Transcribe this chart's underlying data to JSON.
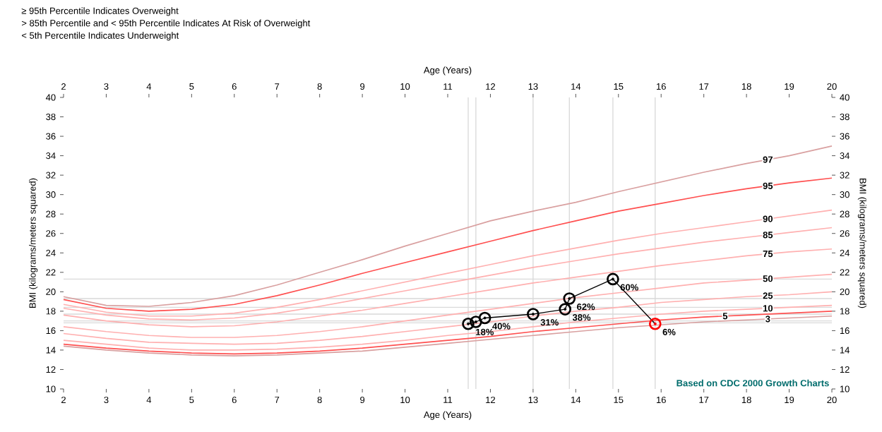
{
  "chart_data": {
    "type": "line",
    "annotations": [
      "≥ 95th Percentile Indicates Overweight",
      "> 85th Percentile and < 95th Percentile Indicates At Risk of Overweight",
      "< 5th Percentile Indicates Underweight",
      "Based on CDC 2000 Growth Charts",
      {
        "text": "18%",
        "x": 11.48,
        "y": 16.7
      },
      {
        "text": "40%",
        "x": 11.87,
        "y": 17.3
      },
      {
        "text": "31%",
        "x": 13.0,
        "y": 17.7
      },
      {
        "text": "38%",
        "x": 13.75,
        "y": 18.2
      },
      {
        "text": "62%",
        "x": 13.85,
        "y": 19.3
      },
      {
        "text": "60%",
        "x": 14.87,
        "y": 21.3
      },
      {
        "text": "6%",
        "x": 15.86,
        "y": 16.7
      }
    ],
    "xlabel": "Age (Years)",
    "x2label": "Age (Years)",
    "ylabel": "BMI (kilograms/meters squared)",
    "y2label": "BMI (kilograms/meters squared)",
    "xlim": [
      2,
      20
    ],
    "xticks": [
      2,
      3,
      4,
      5,
      6,
      7,
      8,
      9,
      10,
      11,
      12,
      13,
      14,
      15,
      16,
      17,
      18,
      19,
      20
    ],
    "x2lim": [
      2,
      20
    ],
    "x2ticks": [
      2,
      3,
      4,
      5,
      6,
      7,
      8,
      9,
      10,
      11,
      12,
      13,
      14,
      15,
      16,
      17,
      18,
      19,
      20
    ],
    "ylim": [
      10,
      40
    ],
    "yticks": [
      10,
      12,
      14,
      16,
      18,
      20,
      22,
      24,
      26,
      28,
      30,
      32,
      34,
      36,
      38,
      40
    ],
    "y2lim": [
      10,
      40
    ],
    "y2ticks": [
      10,
      12,
      14,
      16,
      18,
      20,
      22,
      24,
      26,
      28,
      30,
      32,
      34,
      36,
      38,
      40
    ],
    "legend": false,
    "x": [
      2,
      3,
      4,
      5,
      6,
      7,
      8,
      9,
      10,
      11,
      12,
      13,
      14,
      15,
      16,
      17,
      18,
      19,
      20
    ],
    "series": [
      {
        "name": "97",
        "color": "#d9a0a0",
        "values": [
          19.5,
          18.6,
          18.5,
          18.9,
          19.6,
          20.7,
          22.0,
          23.3,
          24.7,
          26.0,
          27.3,
          28.3,
          29.2,
          30.3,
          31.3,
          32.3,
          33.2,
          34.0,
          35.0
        ]
      },
      {
        "name": "95",
        "color": "#ff5050",
        "values": [
          19.2,
          18.3,
          18.0,
          18.2,
          18.7,
          19.6,
          20.7,
          21.9,
          23.0,
          24.1,
          25.2,
          26.3,
          27.3,
          28.3,
          29.1,
          29.9,
          30.6,
          31.2,
          31.7
        ]
      },
      {
        "name": "90",
        "color": "#ffb0b0",
        "values": [
          18.7,
          17.9,
          17.5,
          17.5,
          17.8,
          18.4,
          19.2,
          20.1,
          21.0,
          21.9,
          22.8,
          23.7,
          24.5,
          25.3,
          26.0,
          26.6,
          27.2,
          27.8,
          28.4
        ]
      },
      {
        "name": "85",
        "color": "#ffb0b0",
        "values": [
          18.3,
          17.6,
          17.2,
          17.1,
          17.3,
          17.8,
          18.5,
          19.3,
          20.1,
          20.9,
          21.7,
          22.5,
          23.2,
          23.9,
          24.5,
          25.1,
          25.6,
          26.1,
          26.6
        ]
      },
      {
        "name": "75",
        "color": "#ffb0b0",
        "values": [
          17.6,
          17.0,
          16.6,
          16.4,
          16.5,
          16.9,
          17.5,
          18.1,
          18.8,
          19.5,
          20.2,
          20.9,
          21.5,
          22.1,
          22.7,
          23.2,
          23.7,
          24.1,
          24.4
        ]
      },
      {
        "name": "50",
        "color": "#ffb0b0",
        "values": [
          16.4,
          15.9,
          15.5,
          15.3,
          15.3,
          15.5,
          15.9,
          16.4,
          17.0,
          17.6,
          18.2,
          18.8,
          19.4,
          19.9,
          20.4,
          20.9,
          21.2,
          21.5,
          21.8
        ]
      },
      {
        "name": "25",
        "color": "#ffb0b0",
        "values": [
          15.7,
          15.2,
          14.8,
          14.7,
          14.6,
          14.7,
          15.0,
          15.4,
          15.9,
          16.4,
          16.9,
          17.5,
          18.0,
          18.4,
          18.9,
          19.2,
          19.5,
          19.7,
          20.0
        ]
      },
      {
        "name": "10",
        "color": "#ffb0b0",
        "values": [
          15.0,
          14.6,
          14.2,
          14.0,
          14.0,
          14.1,
          14.3,
          14.6,
          15.0,
          15.5,
          15.9,
          16.4,
          16.9,
          17.3,
          17.7,
          18.0,
          18.2,
          18.4,
          18.6
        ]
      },
      {
        "name": "5",
        "color": "#ff5050",
        "values": [
          14.6,
          14.2,
          13.9,
          13.7,
          13.6,
          13.7,
          13.9,
          14.2,
          14.6,
          15.0,
          15.4,
          15.9,
          16.3,
          16.7,
          17.1,
          17.4,
          17.6,
          17.8,
          18.0
        ]
      },
      {
        "name": "3",
        "color": "#d9a0a0",
        "values": [
          14.4,
          14.0,
          13.7,
          13.5,
          13.4,
          13.5,
          13.7,
          13.9,
          14.3,
          14.7,
          15.1,
          15.5,
          15.9,
          16.3,
          16.6,
          16.9,
          17.1,
          17.3,
          17.5
        ]
      },
      {
        "type": "line",
        "marker": "circle",
        "color": "#000000",
        "x": [
          11.48,
          11.66,
          11.87,
          13.0,
          13.75,
          13.85,
          14.87,
          15.86
        ],
        "values": [
          16.7,
          16.9,
          17.3,
          17.7,
          18.2,
          19.3,
          21.3,
          16.7
        ],
        "colors": [
          "#000000",
          "#000000",
          "#000000",
          "#000000",
          "#000000",
          "#000000",
          "#000000",
          "#ff0000"
        ]
      }
    ],
    "ref_lines": [
      {
        "axis": "x",
        "value": 11.48,
        "color": "#d9d9d9"
      },
      {
        "axis": "x",
        "value": 11.66,
        "color": "#d9d9d9"
      },
      {
        "axis": "x",
        "value": 13.0,
        "color": "#d9d9d9"
      },
      {
        "axis": "x",
        "value": 13.85,
        "color": "#d9d9d9"
      },
      {
        "axis": "x",
        "value": 14.87,
        "color": "#d9d9d9"
      },
      {
        "axis": "x",
        "value": 15.86,
        "color": "#d9d9d9"
      },
      {
        "axis": "y",
        "value": 21.3,
        "color": "#d9d9d9"
      },
      {
        "axis": "y",
        "value": 19.3,
        "color": "#d9d9d9"
      },
      {
        "axis": "y",
        "value": 18.4,
        "color": "#d9d9d9"
      },
      {
        "axis": "y",
        "value": 17.7,
        "color": "#d9d9d9"
      },
      {
        "axis": "y",
        "value": 17.0,
        "color": "#d9d9d9"
      },
      {
        "axis": "y",
        "value": 16.8,
        "color": "#d9d9d9"
      }
    ]
  }
}
